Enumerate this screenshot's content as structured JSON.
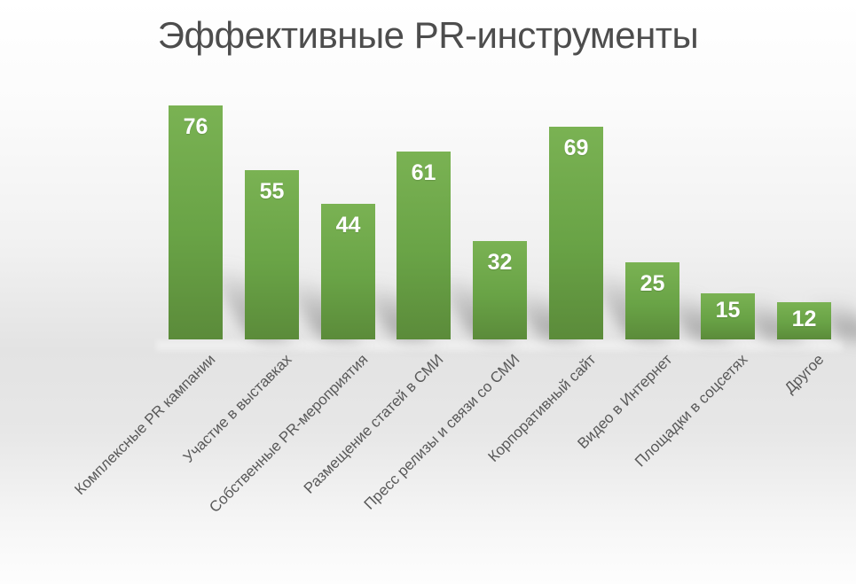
{
  "chart_data": {
    "type": "bar",
    "title": "Эффективные PR-инструменты",
    "categories": [
      "Комплексные PR кампании",
      "Участие в выставках",
      "Собственные PR-мероприятия",
      "Размещение статей в СМИ",
      "Пресс релизы и связи со СМИ",
      "Корпоративный сайт",
      "Видео в Интернет",
      "Площадки в соцсетях",
      "Другое"
    ],
    "values": [
      76,
      55,
      44,
      61,
      32,
      69,
      25,
      15,
      12
    ],
    "value_labels_visible": true,
    "axes_visible": false,
    "gridlines": false,
    "legend": "none",
    "ylim": [
      0,
      76
    ],
    "category_label_rotation_deg": -45,
    "colors": {
      "bar_gradient_top": "#7ab253",
      "bar_gradient_bottom": "#5b8b3a",
      "value_label": "#ffffff",
      "category_label": "#595959",
      "title": "#4d4d4d"
    }
  }
}
